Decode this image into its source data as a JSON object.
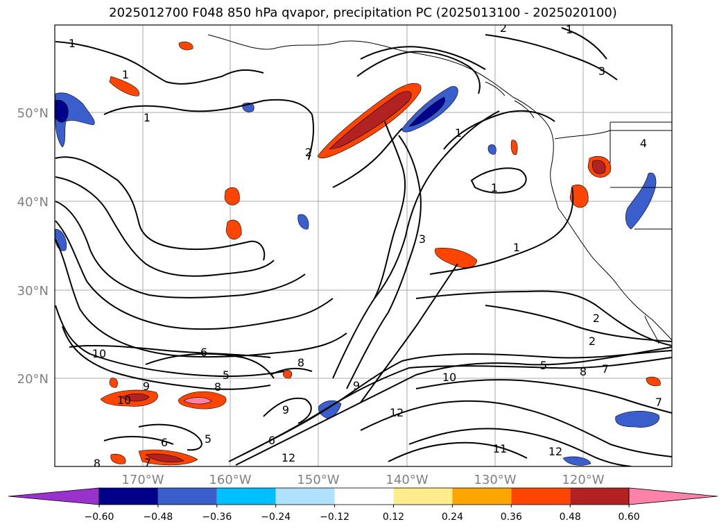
{
  "title": "2025012700 F048 850 hPa qvapor, precipitation PC (2025013100 - 2025020100)",
  "lat_labels": [
    "50°N",
    "40°N",
    "30°N",
    "20°N"
  ],
  "lon_labels": [
    "170°W",
    "160°W",
    "150°W",
    "140°W",
    "130°W",
    "120°W"
  ],
  "colorbar": {
    "ticks": [
      "−0.60",
      "−0.48",
      "−0.36",
      "−0.24",
      "−0.12",
      "0.12",
      "0.24",
      "0.36",
      "0.48",
      "0.60"
    ],
    "colors": [
      "#9932CC",
      "#00008B",
      "#3A5FCD",
      "#00BFFF",
      "#B0E2FF",
      "#FFFFFF",
      "#FFEC8B",
      "#FFA500",
      "#FF4500",
      "#B22222",
      "#FF82AB"
    ]
  },
  "contour_labels": [
    {
      "text": "1"
    },
    {
      "text": "1"
    },
    {
      "text": "1"
    },
    {
      "text": "1"
    },
    {
      "text": "1"
    },
    {
      "text": "1"
    },
    {
      "text": "1"
    },
    {
      "text": "2"
    },
    {
      "text": "2"
    },
    {
      "text": "2"
    },
    {
      "text": "2"
    },
    {
      "text": "3"
    },
    {
      "text": "3"
    },
    {
      "text": "4"
    },
    {
      "text": "5"
    },
    {
      "text": "5"
    },
    {
      "text": "5"
    },
    {
      "text": "6"
    },
    {
      "text": "6"
    },
    {
      "text": "6"
    },
    {
      "text": "7"
    },
    {
      "text": "7"
    },
    {
      "text": "7"
    },
    {
      "text": "8"
    },
    {
      "text": "8"
    },
    {
      "text": "8"
    },
    {
      "text": "8"
    },
    {
      "text": "9"
    },
    {
      "text": "9"
    },
    {
      "text": "9"
    },
    {
      "text": "10"
    },
    {
      "text": "10"
    },
    {
      "text": "10"
    },
    {
      "text": "11"
    },
    {
      "text": "12"
    },
    {
      "text": "12"
    },
    {
      "text": "12"
    }
  ]
}
